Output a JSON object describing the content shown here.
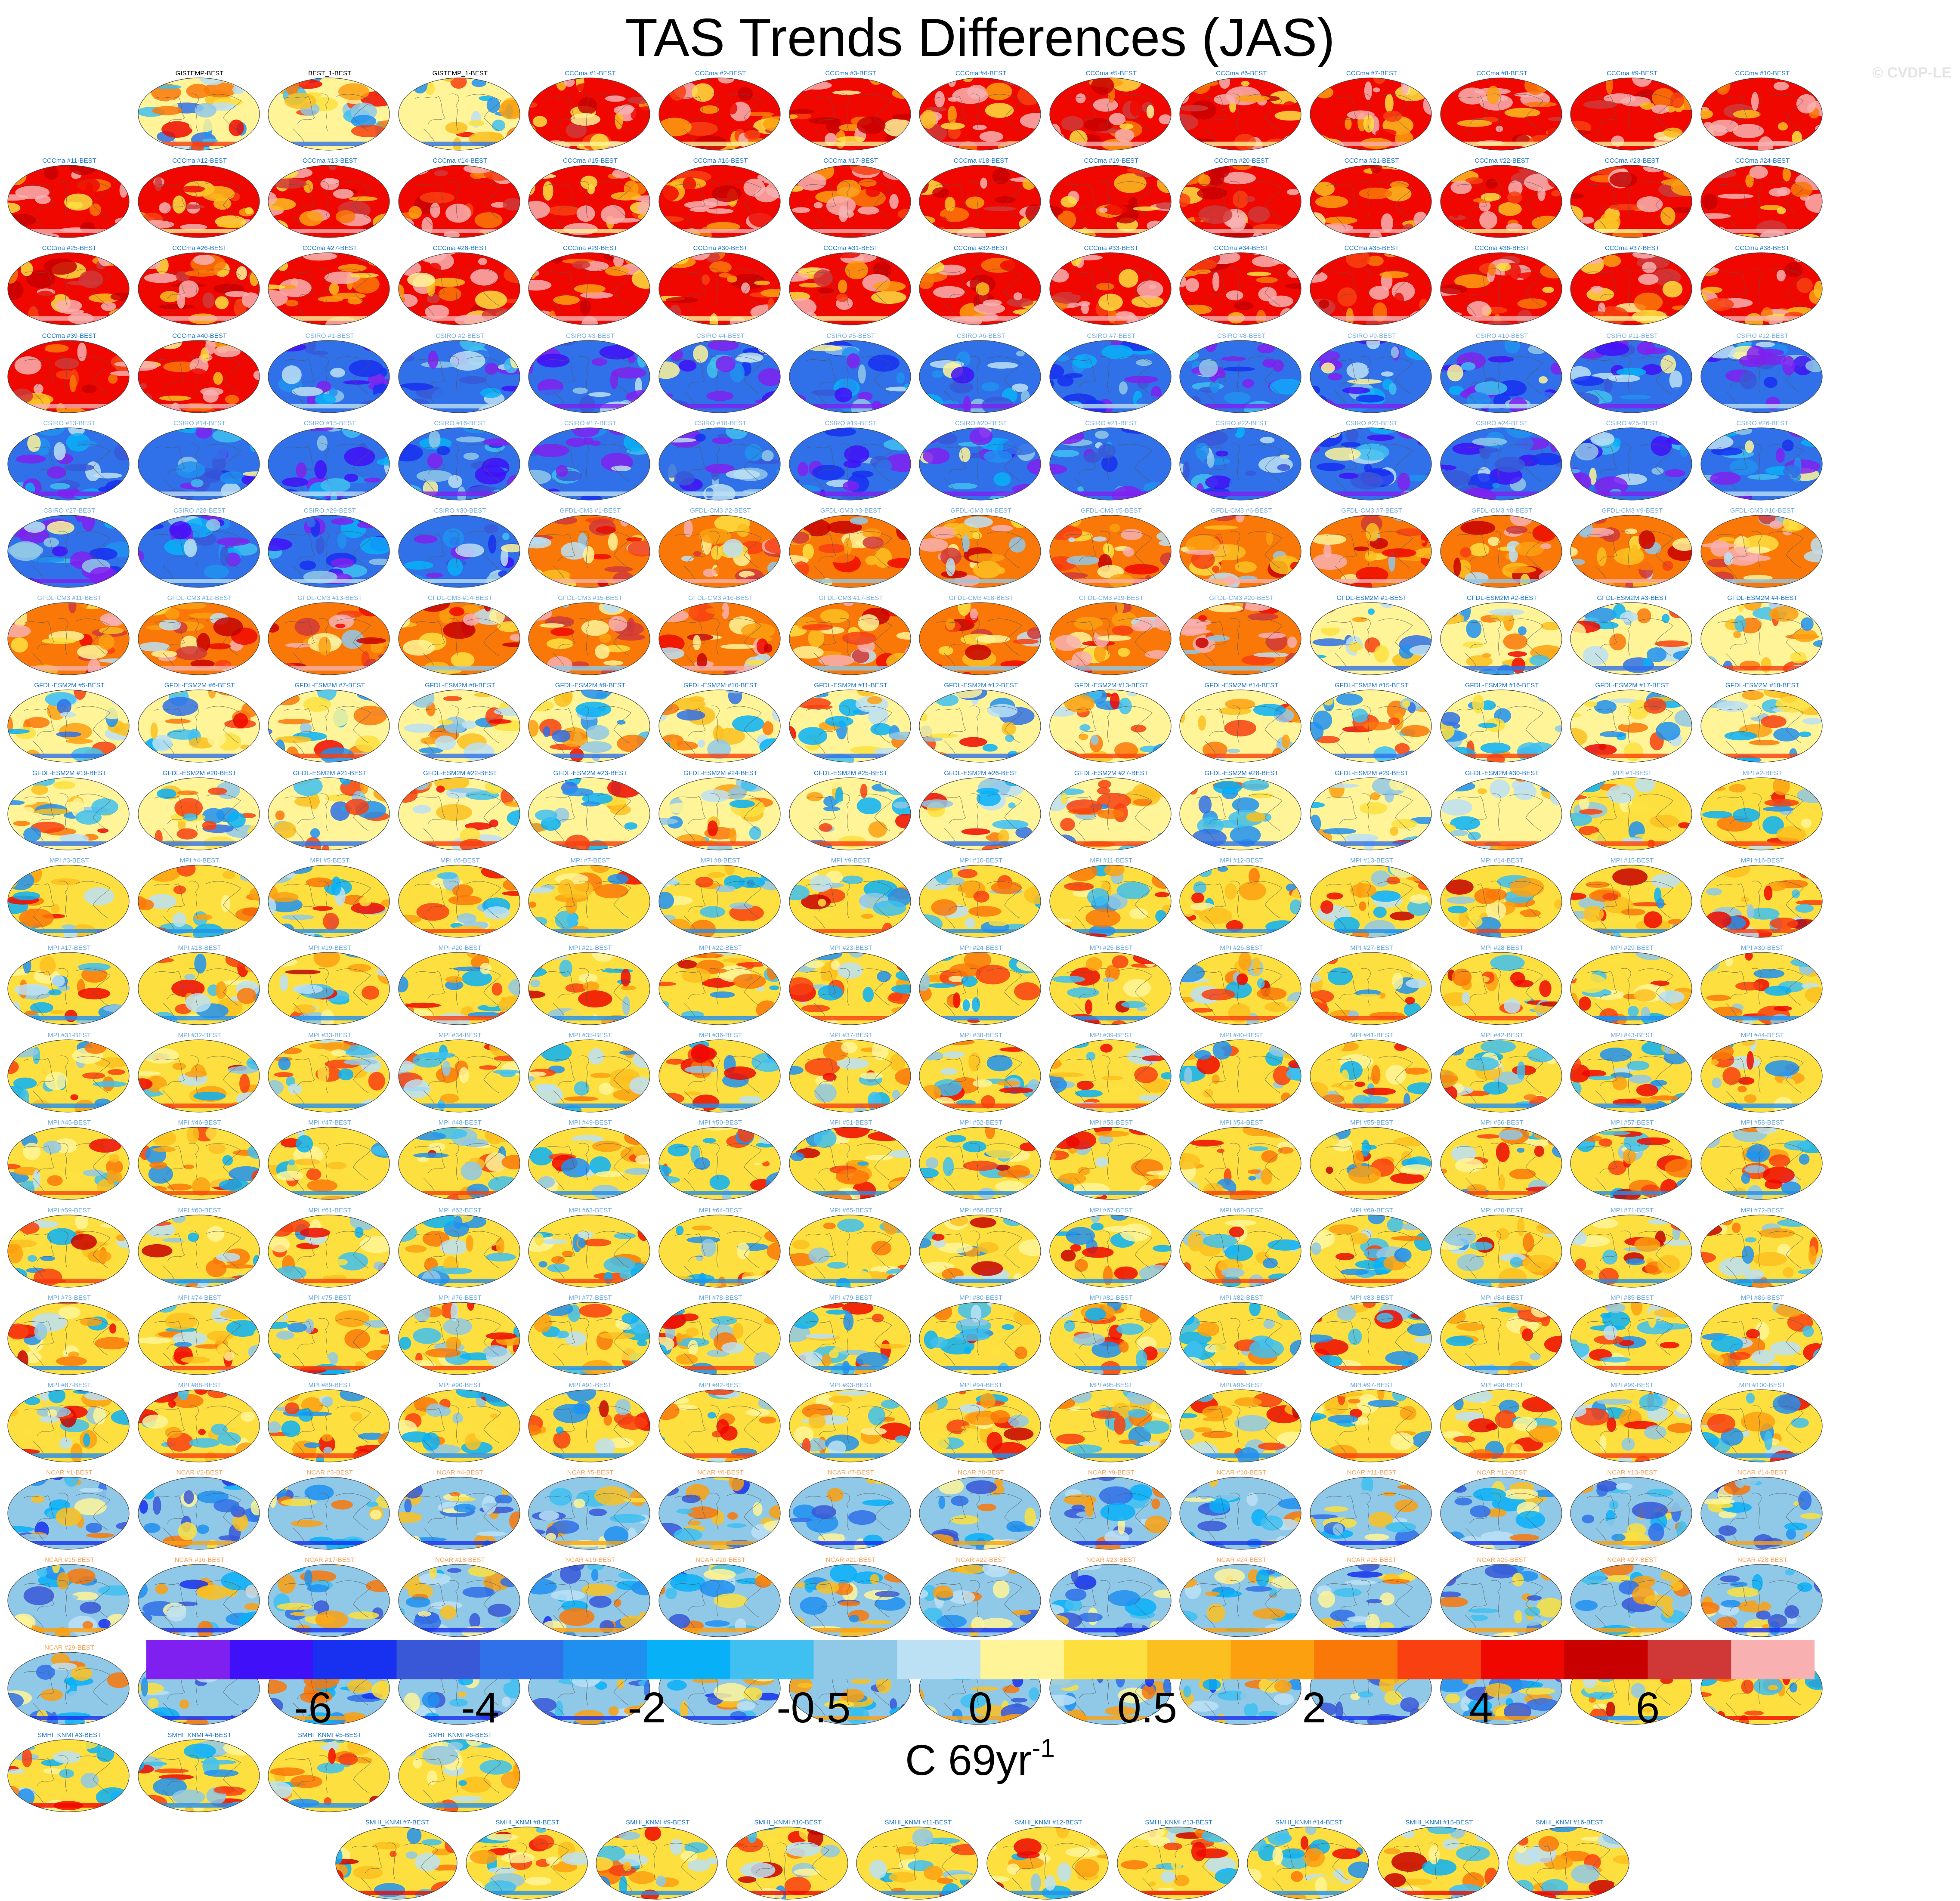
{
  "title": "TAS Trends Differences (JAS)",
  "watermark": "© CVDP-LE",
  "chart_data": {
    "type": "heatmap",
    "title": "TAS Trends Differences (JAS)",
    "units_base": "C 69yr",
    "units_exp": "-1",
    "colorbar": {
      "colors": [
        "#8020f0",
        "#4010f8",
        "#1830f0",
        "#3858d8",
        "#3070e8",
        "#2090f0",
        "#08b0f8",
        "#40c0f0",
        "#90c8e8",
        "#bce0f4",
        "#fff498",
        "#fde040",
        "#fcbf20",
        "#fca010",
        "#fa7808",
        "#f84010",
        "#f00800",
        "#c80000",
        "#d03838",
        "#f8b0b0"
      ],
      "tick_labels": [
        "-6",
        "-4",
        "-2",
        "-0.5",
        "0",
        "0.5",
        "2",
        "4",
        "6"
      ],
      "tick_boundaries": [
        2,
        4,
        6,
        8,
        10,
        12,
        14,
        16,
        18
      ]
    },
    "groups": [
      {
        "name": "obs",
        "label_color": "#000000",
        "labels": [
          "GISTEMP-BEST",
          "BEST_1-BEST",
          "GISTEMP_1-BEST"
        ],
        "tone": 0.05
      },
      {
        "name": "CCCma",
        "prefix": "CCCma",
        "count": 40,
        "label_color": "#1f78d0",
        "tone": 0.68
      },
      {
        "name": "CSIRO",
        "prefix": "CSIRO",
        "count": 30,
        "label_color": "#7ab0e0",
        "tone": -0.55
      },
      {
        "name": "GFDL-CM3",
        "prefix": "GFDL-CM3",
        "count": 20,
        "label_color": "#7ab0e0",
        "tone": 0.45
      },
      {
        "name": "GFDL-ESM2M",
        "prefix": "GFDL-ESM2M",
        "count": 30,
        "label_color": "#1f78d0",
        "tone": 0.05
      },
      {
        "name": "MPI",
        "prefix": "MPI",
        "count": 100,
        "label_color": "#6aa8e0",
        "tone": 0.12
      },
      {
        "name": "NCAR",
        "prefix": "NCAR",
        "count": 40,
        "label_color": "#f4a460",
        "tone": -0.12
      },
      {
        "name": "SMHI_KNMI",
        "prefix": "SMHI_KNMI",
        "count": 16,
        "label_color": "#1f78d0",
        "tone": 0.15
      }
    ],
    "panel_suffix": "-BEST"
  }
}
